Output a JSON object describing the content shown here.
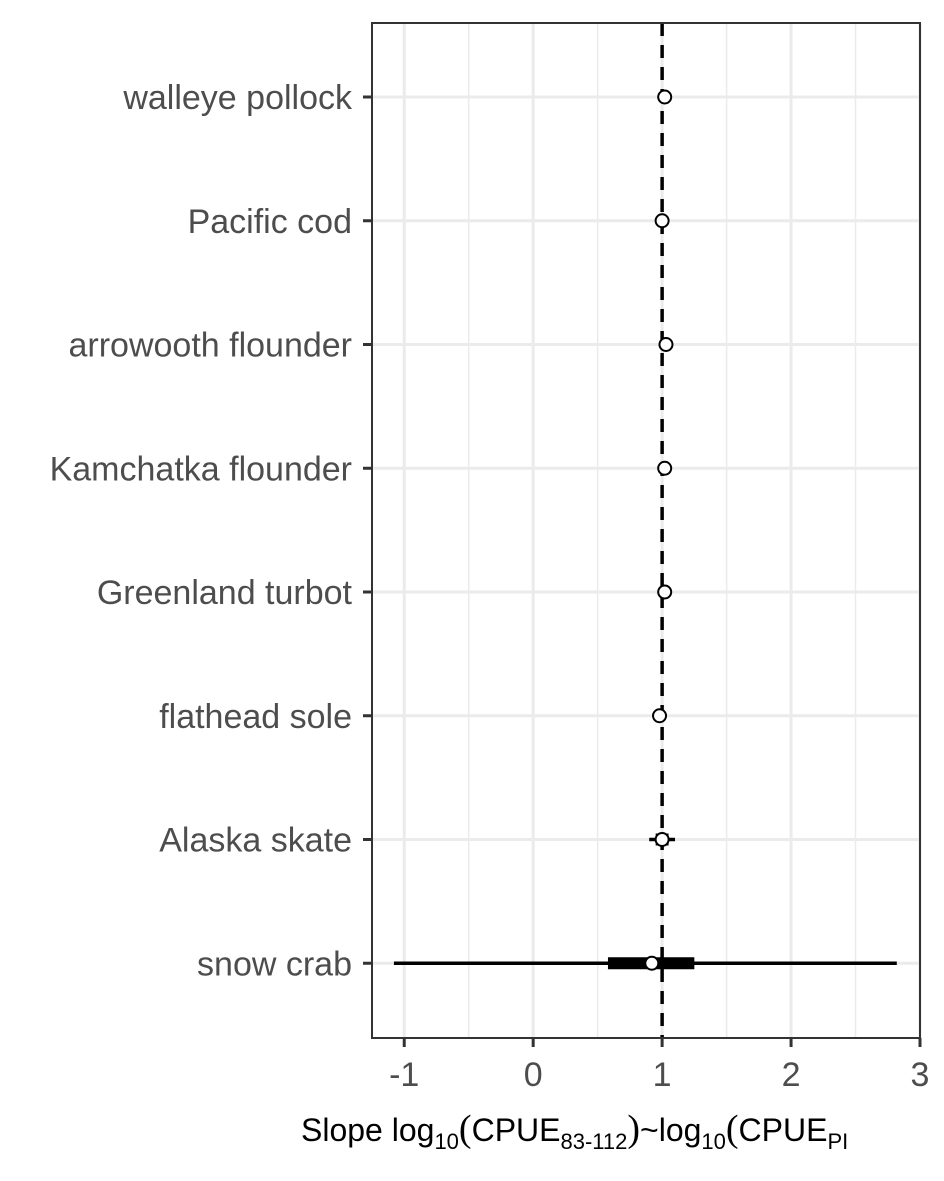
{
  "chart_data": {
    "type": "scatter",
    "title": "",
    "xlabel_parts": {
      "prefix": "Slope log",
      "sub1": "10",
      "open1": "(",
      "cpue1": "CPUE",
      "sub2": "83-112",
      "close1": ")",
      "tilde": "~log",
      "sub3": "10",
      "open2": "(",
      "cpue2": "CPUE",
      "sub4": "PI"
    },
    "ylabel": "",
    "xlim": [
      -1.25,
      3.0
    ],
    "x_ticks": [
      -1,
      0,
      1,
      2,
      3
    ],
    "x_tick_labels": [
      "-1",
      "0",
      "1",
      "2",
      "3"
    ],
    "reference_line_x": 1,
    "grid": true,
    "categories": [
      "walleye pollock",
      "Pacific cod",
      "arrowooth flounder",
      "Kamchatka flounder",
      "Greenland turbot",
      "flathead sole",
      "Alaska skate",
      "snow crab"
    ],
    "points": [
      {
        "label": "walleye pollock",
        "estimate": 1.02,
        "inner": [
          0.99,
          1.05
        ],
        "outer": [
          0.98,
          1.06
        ]
      },
      {
        "label": "Pacific cod",
        "estimate": 1.0,
        "inner": [
          0.98,
          1.02
        ],
        "outer": [
          0.97,
          1.03
        ]
      },
      {
        "label": "arrowooth flounder",
        "estimate": 1.03,
        "inner": [
          1.01,
          1.05
        ],
        "outer": [
          1.0,
          1.06
        ]
      },
      {
        "label": "Kamchatka flounder",
        "estimate": 1.02,
        "inner": [
          1.0,
          1.04
        ],
        "outer": [
          0.99,
          1.05
        ]
      },
      {
        "label": "Greenland turbot",
        "estimate": 1.02,
        "inner": [
          0.99,
          1.05
        ],
        "outer": [
          0.98,
          1.06
        ]
      },
      {
        "label": "flathead sole",
        "estimate": 0.98,
        "inner": [
          0.96,
          1.0
        ],
        "outer": [
          0.95,
          1.01
        ]
      },
      {
        "label": "Alaska skate",
        "estimate": 1.0,
        "inner": [
          0.95,
          1.05
        ],
        "outer": [
          0.9,
          1.1
        ]
      },
      {
        "label": "snow crab",
        "estimate": 0.92,
        "inner": [
          0.58,
          1.25
        ],
        "outer": [
          -1.08,
          2.82
        ]
      }
    ]
  }
}
